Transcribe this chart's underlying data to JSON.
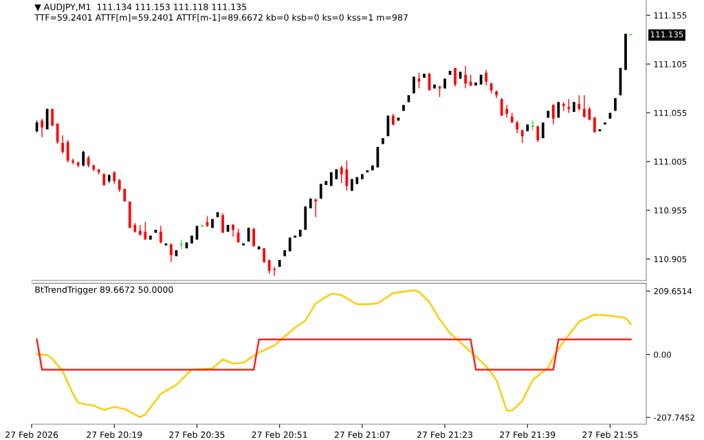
{
  "chart_data": [
    {
      "type": "candlestick",
      "title": "▼ AUDJPY,M1  111.134 111.153 111.118 111.135",
      "subtitle": "TTF=59.2401 ATTF[m]=59.2401 ATTF[m-1]=89.6672 kb=0 ksb=0 ks=0 kss=1 m=987",
      "x": [
        "2026-02-27T20:04",
        "2026-02-27T20:05",
        "2026-02-27T20:06",
        "2026-02-27T20:07",
        "2026-02-27T20:08",
        "2026-02-27T20:09",
        "2026-02-27T20:10",
        "2026-02-27T20:11",
        "2026-02-27T20:12",
        "2026-02-27T20:13",
        "2026-02-27T20:14",
        "2026-02-27T20:15",
        "2026-02-27T20:16",
        "2026-02-27T20:17",
        "2026-02-27T20:18",
        "2026-02-27T20:19",
        "2026-02-27T20:20",
        "2026-02-27T20:21",
        "2026-02-27T20:22",
        "2026-02-27T20:23",
        "2026-02-27T20:24",
        "2026-02-27T20:25",
        "2026-02-27T20:26",
        "2026-02-27T20:27",
        "2026-02-27T20:28",
        "2026-02-27T20:29",
        "2026-02-27T20:30",
        "2026-02-27T20:31",
        "2026-02-27T20:32",
        "2026-02-27T20:33",
        "2026-02-27T20:34",
        "2026-02-27T20:35",
        "2026-02-27T20:36",
        "2026-02-27T20:37",
        "2026-02-27T20:38",
        "2026-02-27T20:39",
        "2026-02-27T20:40",
        "2026-02-27T20:41",
        "2026-02-27T20:42",
        "2026-02-27T20:43",
        "2026-02-27T20:44",
        "2026-02-27T20:45",
        "2026-02-27T20:46",
        "2026-02-27T20:47",
        "2026-02-27T20:48",
        "2026-02-27T20:49",
        "2026-02-27T20:50",
        "2026-02-27T20:51",
        "2026-02-27T20:52",
        "2026-02-27T20:53",
        "2026-02-27T20:54",
        "2026-02-27T20:55",
        "2026-02-27T20:56",
        "2026-02-27T20:57",
        "2026-02-27T20:58",
        "2026-02-27T20:59",
        "2026-02-27T21:00",
        "2026-02-27T21:01",
        "2026-02-27T21:02",
        "2026-02-27T21:03",
        "2026-02-27T21:04",
        "2026-02-27T21:05",
        "2026-02-27T21:06",
        "2026-02-27T21:07",
        "2026-02-27T21:08",
        "2026-02-27T21:09",
        "2026-02-27T21:10",
        "2026-02-27T21:11",
        "2026-02-27T21:12",
        "2026-02-27T21:13",
        "2026-02-27T21:14",
        "2026-02-27T21:15",
        "2026-02-27T21:16",
        "2026-02-27T21:17",
        "2026-02-27T21:18",
        "2026-02-27T21:19",
        "2026-02-27T21:20",
        "2026-02-27T21:21",
        "2026-02-27T21:22",
        "2026-02-27T21:23",
        "2026-02-27T21:24",
        "2026-02-27T21:25",
        "2026-02-27T21:26",
        "2026-02-27T21:27",
        "2026-02-27T21:28",
        "2026-02-27T21:29",
        "2026-02-27T21:30",
        "2026-02-27T21:31",
        "2026-02-27T21:32",
        "2026-02-27T21:33",
        "2026-02-27T21:34",
        "2026-02-27T21:35",
        "2026-02-27T21:36",
        "2026-02-27T21:37",
        "2026-02-27T21:38",
        "2026-02-27T21:39",
        "2026-02-27T21:40",
        "2026-02-27T21:41",
        "2026-02-27T21:42",
        "2026-02-27T21:43",
        "2026-02-27T21:44",
        "2026-02-27T21:45",
        "2026-02-27T21:46",
        "2026-02-27T21:47",
        "2026-02-27T21:48",
        "2026-02-27T21:49",
        "2026-02-27T21:50",
        "2026-02-27T21:51",
        "2026-02-27T21:52",
        "2026-02-27T21:53",
        "2026-02-27T21:54",
        "2026-02-27T21:55",
        "2026-02-27T21:56",
        "2026-02-27T21:57",
        "2026-02-27T21:58",
        "2026-02-27T21:59"
      ],
      "ohlc": [
        [
          111.036,
          111.047,
          111.035,
          111.045
        ],
        [
          111.047,
          111.049,
          111.03,
          111.04
        ],
        [
          111.038,
          111.059,
          111.038,
          111.059
        ],
        [
          111.059,
          111.059,
          111.041,
          111.042
        ],
        [
          111.044,
          111.044,
          111.023,
          111.025
        ],
        [
          111.024,
          111.032,
          111.013,
          111.015
        ],
        [
          111.025,
          111.027,
          111.004,
          111.006
        ],
        [
          111.006,
          111.008,
          111.002,
          111.004
        ],
        [
          111.004,
          111.005,
          110.999,
          111.001
        ],
        [
          111.001,
          111.016,
          111.0,
          111.015
        ],
        [
          111.009,
          111.011,
          110.999,
          111.001
        ],
        [
          111.001,
          111.002,
          110.995,
          110.997
        ],
        [
          110.997,
          110.997,
          110.992,
          110.994
        ],
        [
          110.992,
          110.993,
          110.98,
          110.981
        ],
        [
          110.985,
          110.992,
          110.983,
          110.991
        ],
        [
          110.994,
          110.995,
          110.982,
          110.985
        ],
        [
          110.986,
          110.987,
          110.974,
          110.976
        ],
        [
          110.977,
          110.977,
          110.964,
          110.964
        ],
        [
          110.964,
          110.964,
          110.937,
          110.937
        ],
        [
          110.94,
          110.942,
          110.932,
          110.933
        ],
        [
          110.934,
          110.94,
          110.929,
          110.93
        ],
        [
          110.933,
          110.943,
          110.925,
          110.925
        ],
        [
          110.925,
          110.929,
          110.925,
          110.929
        ],
        [
          110.932,
          110.935,
          110.932,
          110.935
        ],
        [
          110.933,
          110.939,
          110.921,
          110.922
        ],
        [
          110.919,
          110.921,
          110.919,
          110.921
        ],
        [
          110.92,
          110.921,
          110.902,
          110.909
        ],
        [
          110.908,
          110.914,
          110.908,
          110.914
        ],
        [
          110.92,
          110.925,
          110.915,
          110.92
        ],
        [
          110.916,
          110.922,
          110.916,
          110.922
        ],
        [
          110.921,
          110.929,
          110.921,
          110.929
        ],
        [
          110.925,
          110.939,
          110.925,
          110.939
        ],
        [
          110.939,
          110.94,
          110.938,
          110.939
        ],
        [
          110.943,
          110.949,
          110.938,
          110.939
        ],
        [
          110.937,
          110.946,
          110.937,
          110.946
        ],
        [
          110.948,
          110.953,
          110.948,
          110.953
        ],
        [
          110.95,
          110.952,
          110.932,
          110.932
        ],
        [
          110.933,
          110.94,
          110.933,
          110.94
        ],
        [
          110.94,
          110.941,
          110.928,
          110.935
        ],
        [
          110.932,
          110.936,
          110.922,
          110.922
        ],
        [
          110.919,
          110.921,
          110.919,
          110.921
        ],
        [
          110.923,
          110.937,
          110.923,
          110.937
        ],
        [
          110.936,
          110.937,
          110.918,
          110.918
        ],
        [
          110.915,
          110.918,
          110.915,
          110.918
        ],
        [
          110.916,
          110.916,
          110.901,
          110.902
        ],
        [
          110.904,
          110.904,
          110.89,
          110.893
        ],
        [
          110.895,
          110.897,
          110.888,
          110.894
        ],
        [
          110.897,
          110.904,
          110.897,
          110.904
        ],
        [
          110.908,
          110.914,
          110.908,
          110.914
        ],
        [
          110.913,
          110.927,
          110.913,
          110.927
        ],
        [
          110.927,
          110.929,
          110.927,
          110.929
        ],
        [
          110.928,
          110.935,
          110.928,
          110.935
        ],
        [
          110.935,
          110.959,
          110.935,
          110.959
        ],
        [
          110.957,
          110.967,
          110.957,
          110.967
        ],
        [
          110.966,
          110.967,
          110.948,
          110.964
        ],
        [
          110.967,
          110.982,
          110.967,
          110.982
        ],
        [
          110.981,
          110.985,
          110.981,
          110.985
        ],
        [
          110.98,
          110.994,
          110.98,
          110.994
        ],
        [
          110.987,
          110.997,
          110.987,
          110.997
        ],
        [
          110.999,
          111.001,
          110.983,
          110.992
        ],
        [
          110.997,
          111.006,
          110.975,
          110.98
        ],
        [
          110.975,
          110.987,
          110.975,
          110.987
        ],
        [
          110.982,
          110.989,
          110.982,
          110.989
        ],
        [
          110.987,
          110.992,
          110.987,
          110.992
        ],
        [
          110.994,
          110.996,
          110.994,
          110.996
        ],
        [
          110.996,
          111.001,
          110.996,
          111.001
        ],
        [
          110.999,
          111.02,
          110.999,
          111.02
        ],
        [
          111.023,
          111.029,
          111.023,
          111.029
        ],
        [
          111.031,
          111.052,
          111.031,
          111.052
        ],
        [
          111.052,
          111.054,
          111.042,
          111.043
        ],
        [
          111.047,
          111.05,
          111.047,
          111.05
        ],
        [
          111.057,
          111.063,
          111.057,
          111.063
        ],
        [
          111.066,
          111.073,
          111.066,
          111.073
        ],
        [
          111.075,
          111.092,
          111.075,
          111.092
        ],
        [
          111.09,
          111.096,
          111.08,
          111.087
        ],
        [
          111.091,
          111.095,
          111.091,
          111.095
        ],
        [
          111.095,
          111.096,
          111.078,
          111.078
        ],
        [
          111.08,
          111.084,
          111.08,
          111.084
        ],
        [
          111.082,
          111.083,
          111.071,
          111.08
        ],
        [
          111.08,
          111.09,
          111.08,
          111.09
        ],
        [
          111.094,
          111.098,
          111.094,
          111.098
        ],
        [
          111.101,
          111.101,
          111.082,
          111.084
        ],
        [
          111.09,
          111.097,
          111.09,
          111.097
        ],
        [
          111.094,
          111.103,
          111.08,
          111.085
        ],
        [
          111.087,
          111.094,
          111.082,
          111.083
        ],
        [
          111.083,
          111.086,
          111.083,
          111.086
        ],
        [
          111.084,
          111.094,
          111.084,
          111.094
        ],
        [
          111.096,
          111.099,
          111.083,
          111.087
        ],
        [
          111.085,
          111.086,
          111.075,
          111.078
        ],
        [
          111.077,
          111.078,
          111.07,
          111.073
        ],
        [
          111.069,
          111.07,
          111.052,
          111.052
        ],
        [
          111.059,
          111.063,
          111.05,
          111.054
        ],
        [
          111.051,
          111.055,
          111.045,
          111.045
        ],
        [
          111.045,
          111.047,
          111.034,
          111.038
        ],
        [
          111.037,
          111.038,
          111.024,
          111.031
        ],
        [
          111.036,
          111.043,
          111.036,
          111.043
        ],
        [
          111.041,
          111.047,
          111.037,
          111.041
        ],
        [
          111.041,
          111.042,
          111.025,
          111.027
        ],
        [
          111.029,
          111.045,
          111.029,
          111.045
        ],
        [
          111.05,
          111.057,
          111.05,
          111.057
        ],
        [
          111.063,
          111.064,
          111.043,
          111.049
        ],
        [
          111.05,
          111.066,
          111.05,
          111.066
        ],
        [
          111.064,
          111.066,
          111.057,
          111.062
        ],
        [
          111.061,
          111.069,
          111.055,
          111.059
        ],
        [
          111.056,
          111.066,
          111.056,
          111.066
        ],
        [
          111.064,
          111.073,
          111.057,
          111.059
        ],
        [
          111.059,
          111.073,
          111.05,
          111.051
        ],
        [
          111.059,
          111.061,
          111.047,
          111.048
        ],
        [
          111.05,
          111.051,
          111.035,
          111.035
        ],
        [
          111.036,
          111.038,
          111.036,
          111.038
        ],
        [
          111.043,
          111.045,
          111.043,
          111.045
        ],
        [
          111.049,
          111.055,
          111.049,
          111.055
        ],
        [
          111.057,
          111.07,
          111.057,
          111.07
        ],
        [
          111.073,
          111.101,
          111.073,
          111.101
        ],
        [
          111.099,
          111.136,
          111.099,
          111.136
        ],
        [
          111.135,
          111.135,
          111.135,
          111.135
        ]
      ],
      "xlim": [
        "2026-02-27T20:03",
        "2026-02-27T22:02"
      ],
      "ylim": [
        110.883,
        111.17
      ],
      "yticks": [
        110.905,
        110.955,
        111.005,
        111.055,
        111.105,
        111.155
      ],
      "tick_labels": "y",
      "annotations": [
        "111.135"
      ]
    },
    {
      "type": "line",
      "title": "BtTrendTrigger 89.6672 50.0000",
      "series": [
        {
          "color": "#ffcc00",
          "x": [
            "2026-02-27T20:04",
            "2026-02-27T20:06",
            "2026-02-27T20:07",
            "2026-02-27T20:09",
            "2026-02-27T20:11",
            "2026-02-27T20:12",
            "2026-02-27T20:15",
            "2026-02-27T20:17",
            "2026-02-27T20:19",
            "2026-02-27T20:21",
            "2026-02-27T20:24",
            "2026-02-27T20:25",
            "2026-02-27T20:28",
            "2026-02-27T20:30",
            "2026-02-27T20:31",
            "2026-02-27T20:34",
            "2026-02-27T20:38",
            "2026-02-27T20:40",
            "2026-02-27T20:42",
            "2026-02-27T20:44",
            "2026-02-27T20:47",
            "2026-02-27T20:50",
            "2026-02-27T20:54",
            "2026-02-27T20:56",
            "2026-02-27T20:58",
            "2026-02-27T21:01",
            "2026-02-27T21:03",
            "2026-02-27T21:06",
            "2026-02-27T21:08",
            "2026-02-27T21:10",
            "2026-02-27T21:13",
            "2026-02-27T21:17",
            "2026-02-27T21:18",
            "2026-02-27T21:20",
            "2026-02-27T21:22",
            "2026-02-27T21:24",
            "2026-02-27T21:28",
            "2026-02-27T21:31",
            "2026-02-27T21:33",
            "2026-02-27T21:35",
            "2026-02-27T21:36",
            "2026-02-27T21:38",
            "2026-02-27T21:40",
            "2026-02-27T21:43",
            "2026-02-27T21:44",
            "2026-02-27T21:46",
            "2026-02-27T21:49",
            "2026-02-27T21:52",
            "2026-02-27T21:55",
            "2026-02-27T21:58",
            "2026-02-27T21:59"
          ],
          "values": [
            2,
            -2,
            -14,
            -55,
            -130,
            -160,
            -169,
            -183,
            -173,
            -180,
            -207,
            -198,
            -130,
            -110,
            -100,
            -50,
            -46,
            -16,
            -30,
            -27,
            7,
            30,
            89,
            112,
            169,
            201,
            196,
            166,
            166,
            169,
            203,
            212,
            207,
            173,
            116,
            71,
            9,
            -39,
            -84,
            -185,
            -185,
            -153,
            -84,
            -43,
            -9,
            43,
            109,
            132,
            128,
            121,
            100
          ]
        },
        {
          "color": "#ff2020",
          "x": [
            "2026-02-27T20:04",
            "2026-02-27T20:05",
            "2026-02-27T20:46",
            "2026-02-27T20:47",
            "2026-02-27T21:28",
            "2026-02-27T21:29",
            "2026-02-27T21:44",
            "2026-02-27T21:45",
            "2026-02-27T21:59"
          ],
          "values": [
            50,
            -50,
            -50,
            50,
            50,
            -50,
            -50,
            50,
            50
          ]
        }
      ],
      "xlim": [
        "2026-02-27T20:03",
        "2026-02-27T22:02"
      ],
      "xticks": [
        {
          "value": "2026-02-27T20:03",
          "label": "27 Feb 2026"
        },
        {
          "value": "2026-02-27T20:19",
          "label": "27 Feb 20:19"
        },
        {
          "value": "2026-02-27T20:35",
          "label": "27 Feb 20:35"
        },
        {
          "value": "2026-02-27T20:51",
          "label": "27 Feb 20:51"
        },
        {
          "value": "2026-02-27T21:07",
          "label": "27 Feb 21:07"
        },
        {
          "value": "2026-02-27T21:23",
          "label": "27 Feb 21:23"
        },
        {
          "value": "2026-02-27T21:39",
          "label": "27 Feb 21:39"
        },
        {
          "value": "2026-02-27T21:55",
          "label": "27 Feb 21:55"
        }
      ],
      "ylim": [
        -230,
        235
      ],
      "yticks": [
        -207.7452,
        {
          "value": 0,
          "label": "0.00"
        },
        209.6514
      ]
    }
  ]
}
